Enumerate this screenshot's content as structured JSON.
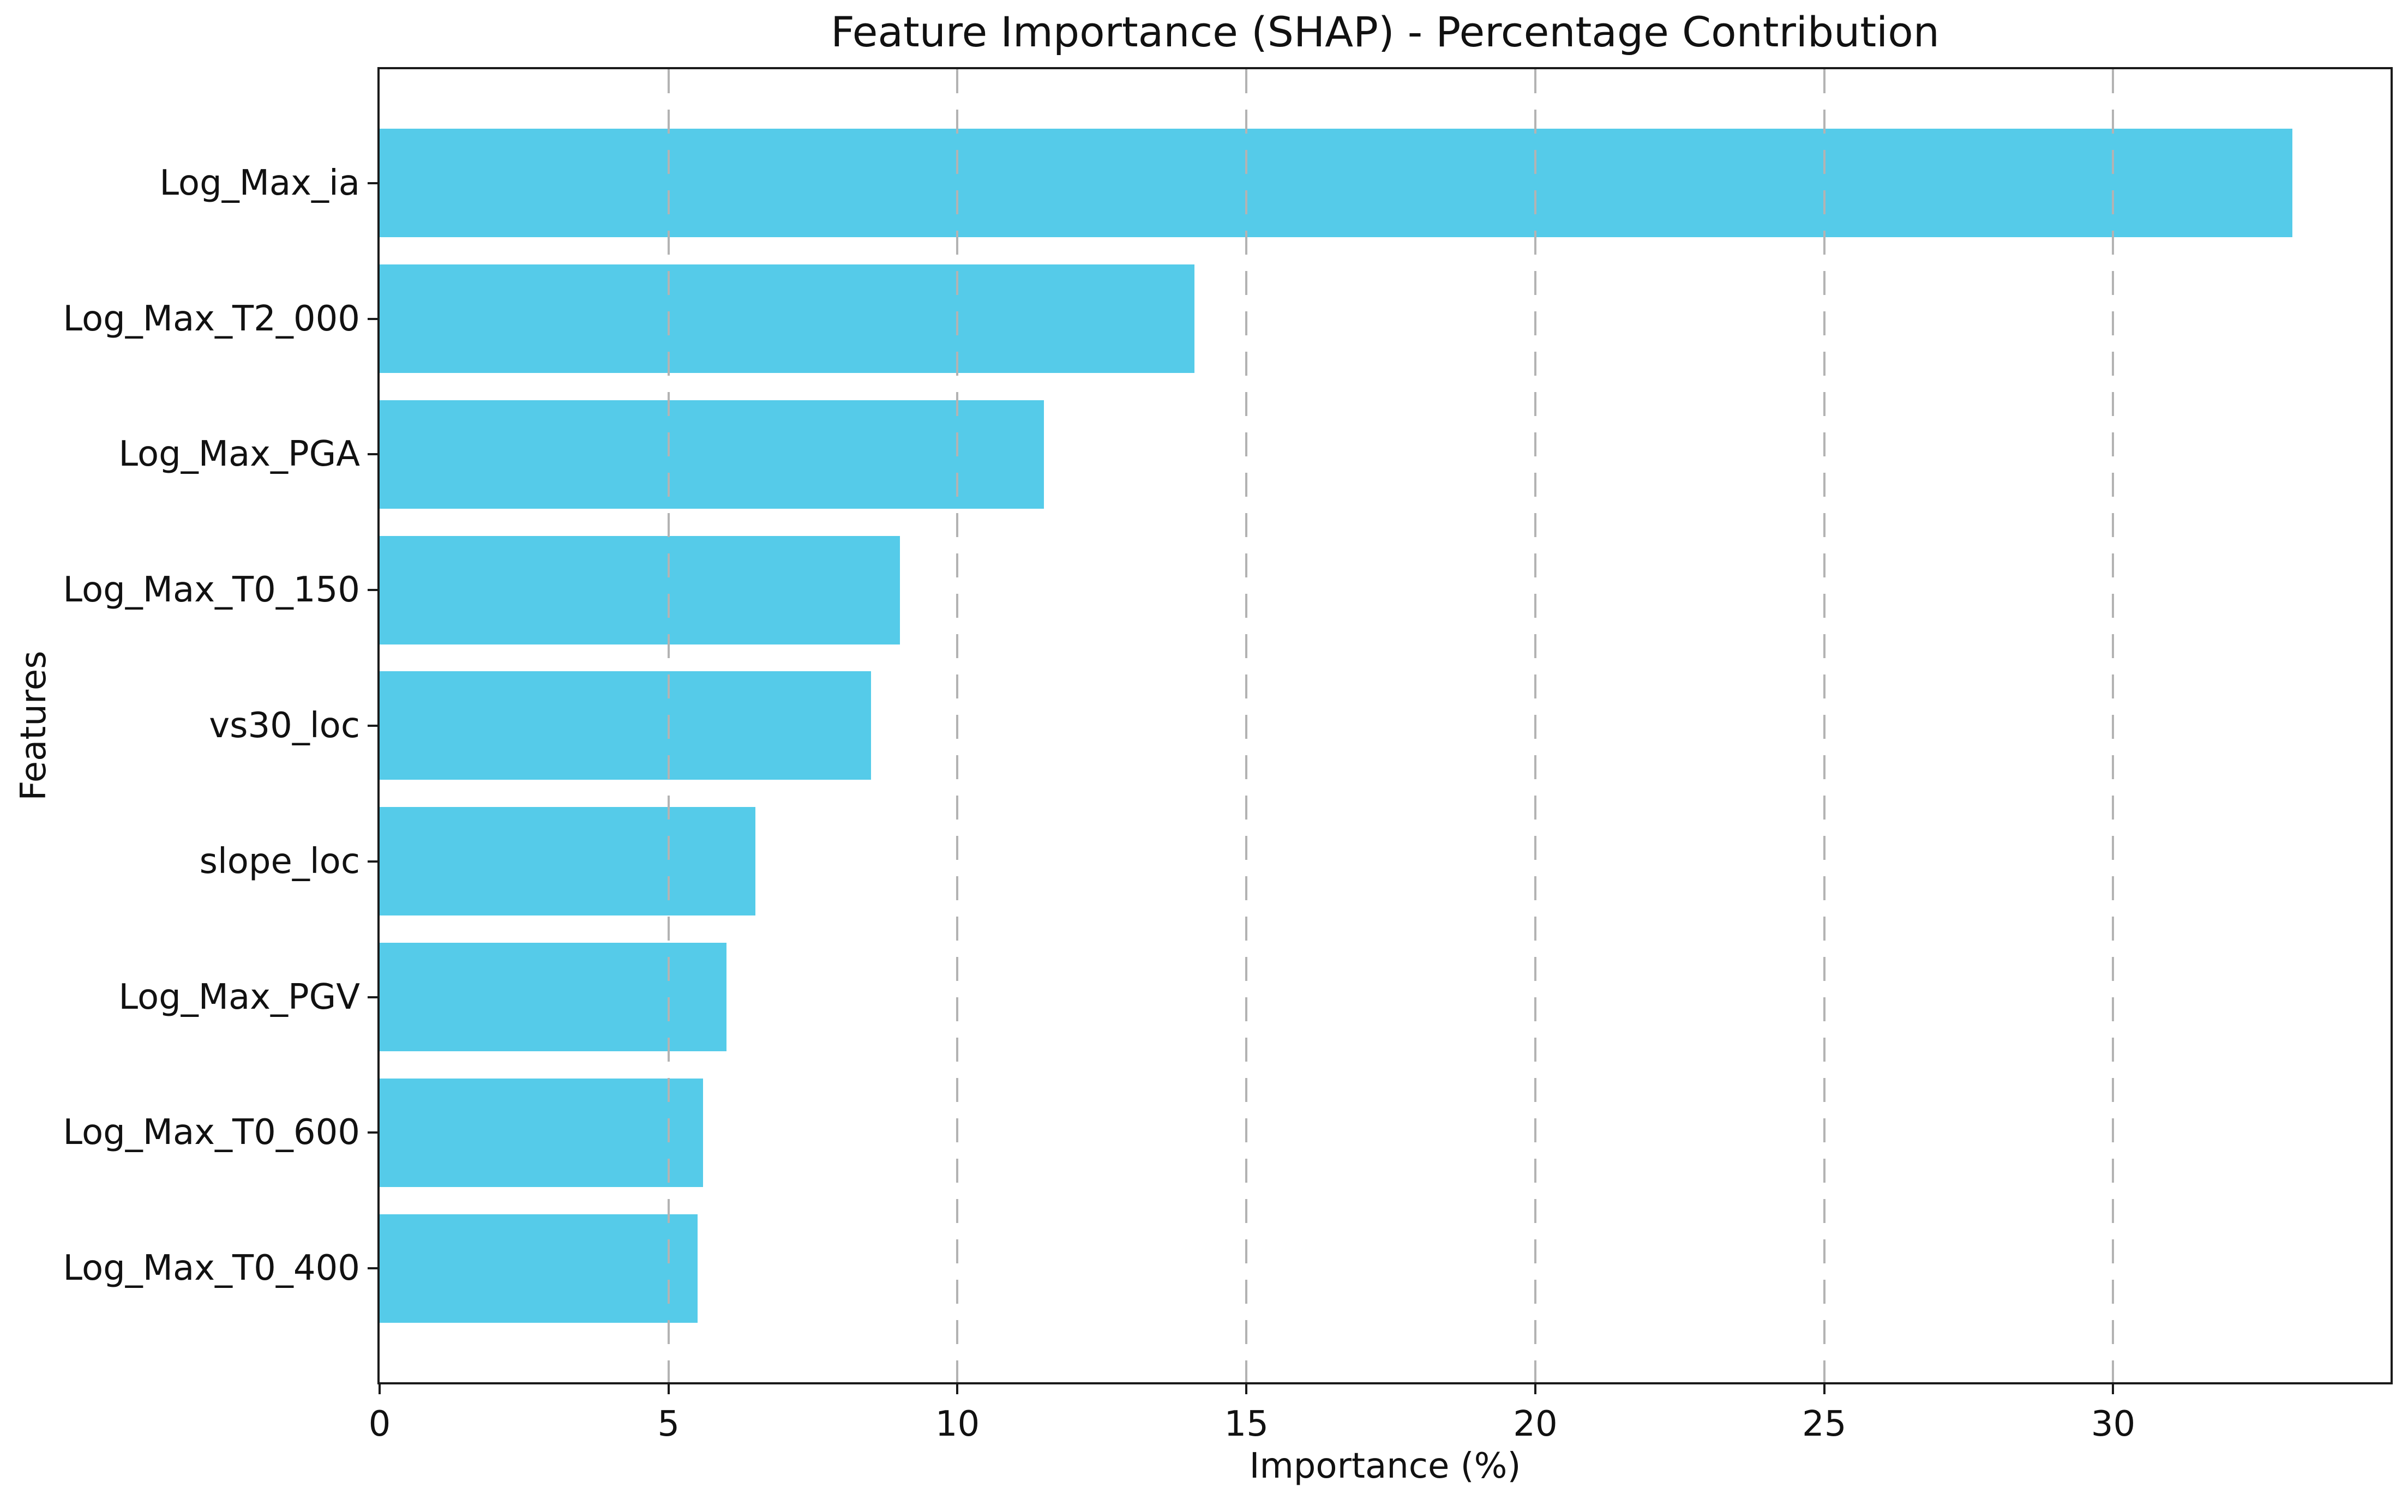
{
  "chart_data": {
    "type": "bar",
    "orientation": "horizontal",
    "title": "Feature Importance (SHAP) - Percentage Contribution",
    "xlabel": "Importance (%)",
    "ylabel": "Features",
    "categories": [
      "Log_Max_ia",
      "Log_Max_T2_000",
      "Log_Max_PGA",
      "Log_Max_T0_150",
      "vs30_loc",
      "slope_loc",
      "Log_Max_PGV",
      "Log_Max_T0_600",
      "Log_Max_T0_400"
    ],
    "values": [
      33.1,
      14.1,
      11.5,
      9.0,
      8.5,
      6.5,
      6.0,
      5.6,
      5.5
    ],
    "xlim": [
      0,
      34.8
    ],
    "xticks": [
      0,
      5,
      10,
      15,
      20,
      25,
      30
    ],
    "grid": "vertical dashed gridlines at xticks, drawn above bars",
    "legend": "none",
    "bar_color": "#55CBE9",
    "grid_color": "#b3b3b3",
    "axis_color": "#1a1a1a",
    "text_color": "#111111"
  }
}
